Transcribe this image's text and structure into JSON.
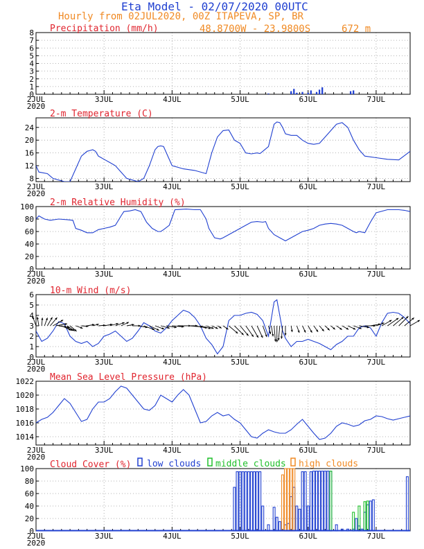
{
  "header": {
    "title": "Eta Model - 02/07/2020 00UTC",
    "subtitle": "Hourly from 02JUL2020, 00Z  ITAPEVA, SP, BR",
    "location": "48.8700W - 23.9800S",
    "elevation": "672  m"
  },
  "colors": {
    "blue": "#1f3fd0",
    "orange": "#f08a24",
    "red": "#e0242e",
    "green": "#1fbf2a"
  },
  "chart_data": [
    {
      "type": "bar",
      "title": "Precipitation (mm/h)",
      "x_range": [
        0,
        132
      ],
      "ylim": [
        0,
        8
      ],
      "yticks": [
        0,
        1,
        2,
        3,
        4,
        5,
        6,
        7,
        8
      ],
      "xtick_labels": [
        "2JUL",
        "3JUL",
        "4JUL",
        "5JUL",
        "6JUL",
        "7JUL"
      ],
      "xtick_year": "2020",
      "grid": true,
      "series": [
        {
          "name": "precipitation",
          "x": [
            82,
            90,
            91,
            92,
            94,
            96,
            97,
            99,
            100,
            101,
            111,
            112
          ],
          "values": [
            0.1,
            0.4,
            0.7,
            0.2,
            0.3,
            0.2,
            0.5,
            0.3,
            0.6,
            0.9,
            0.4,
            0.5
          ]
        }
      ]
    },
    {
      "type": "line",
      "title": "2-m Temperature (C)",
      "x_range": [
        0,
        132
      ],
      "ylim": [
        7,
        27
      ],
      "yticks": [
        8,
        12,
        16,
        20,
        24
      ],
      "xtick_labels": [
        "2JUL",
        "3JUL",
        "4JUL",
        "5JUL",
        "6JUL",
        "7JUL"
      ],
      "xtick_year": "2020",
      "grid": true,
      "series": [
        {
          "name": "temperature",
          "x": [
            0,
            1,
            4,
            6,
            10,
            12,
            14,
            16,
            18,
            20,
            21,
            22,
            23,
            24,
            26,
            28,
            30,
            32,
            34,
            36,
            38,
            40,
            42,
            43,
            44,
            45,
            46,
            48,
            52,
            56,
            60,
            62,
            64,
            66,
            68,
            70,
            72,
            74,
            76,
            78,
            79,
            80,
            82,
            84,
            85,
            86,
            87,
            88,
            90,
            92,
            94,
            96,
            98,
            100,
            102,
            104,
            106,
            108,
            110,
            112,
            114,
            116,
            120,
            124,
            128,
            132
          ],
          "values": [
            12,
            10,
            9.5,
            8,
            7,
            7,
            11,
            15,
            16.5,
            17,
            16.5,
            15,
            14.5,
            14,
            13,
            12,
            10,
            8,
            7.5,
            7,
            8,
            12,
            17,
            18,
            18.2,
            18,
            16,
            12,
            11,
            10.5,
            9.5,
            16,
            21,
            23,
            23.2,
            20,
            19,
            16,
            15.7,
            16,
            15.8,
            16.5,
            18,
            25,
            25.7,
            25.5,
            24,
            22,
            21.5,
            21.5,
            20,
            19,
            18.7,
            19,
            21,
            23,
            25,
            25.5,
            24,
            20,
            17,
            15,
            14.5,
            14,
            13.8,
            16.5
          ]
        }
      ]
    },
    {
      "type": "line",
      "title": "2-m Relative Humidity (%)",
      "x_range": [
        0,
        132
      ],
      "ylim": [
        0,
        100
      ],
      "yticks": [
        0,
        20,
        40,
        60,
        80,
        100
      ],
      "xtick_labels": [
        "2JUL",
        "3JUL",
        "4JUL",
        "5JUL",
        "6JUL",
        "7JUL"
      ],
      "xtick_year": "2020",
      "grid": true,
      "series": [
        {
          "name": "relative humidity",
          "x": [
            0,
            1,
            3,
            5,
            8,
            11,
            13,
            14,
            16,
            18,
            20,
            22,
            24,
            26,
            28,
            30,
            31,
            33,
            35,
            37,
            39,
            41,
            43,
            44,
            45,
            47,
            49,
            53,
            56,
            58,
            60,
            61,
            63,
            65,
            66,
            68,
            70,
            72,
            74,
            76,
            78,
            80,
            81,
            82,
            84,
            86,
            88,
            90,
            92,
            94,
            96,
            98,
            100,
            102,
            104,
            106,
            108,
            110,
            112,
            113,
            114,
            116,
            118,
            120,
            124,
            128,
            130,
            132
          ],
          "values": [
            80,
            85,
            80,
            78,
            80,
            79,
            78,
            65,
            62,
            58,
            58,
            63,
            65,
            67,
            70,
            85,
            92,
            93,
            95,
            92,
            75,
            65,
            60,
            60,
            63,
            70,
            95,
            96,
            95,
            95,
            80,
            65,
            50,
            48,
            50,
            55,
            60,
            65,
            70,
            75,
            76,
            75,
            76,
            65,
            55,
            50,
            45,
            50,
            55,
            60,
            62,
            65,
            70,
            72,
            73,
            72,
            70,
            65,
            60,
            58,
            60,
            58,
            75,
            90,
            95,
            95,
            94,
            92
          ]
        }
      ]
    },
    {
      "type": "line",
      "title": "10-m Wind (m/s)",
      "x_range": [
        0,
        132
      ],
      "ylim": [
        0,
        6
      ],
      "yticks": [
        0,
        1,
        2,
        3,
        4,
        5,
        6
      ],
      "xtick_labels": [
        "2JUL",
        "3JUL",
        "4JUL",
        "5JUL",
        "6JUL",
        "7JUL"
      ],
      "xtick_year": "2020",
      "grid": true,
      "series": [
        {
          "name": "wind speed",
          "x": [
            0,
            2,
            4,
            6,
            8,
            10,
            12,
            14,
            16,
            18,
            20,
            22,
            24,
            26,
            28,
            30,
            32,
            34,
            36,
            38,
            40,
            42,
            44,
            46,
            48,
            50,
            52,
            54,
            56,
            58,
            60,
            62,
            64,
            66,
            68,
            70,
            72,
            74,
            76,
            78,
            80,
            82,
            84,
            85,
            86,
            87,
            88,
            90,
            92,
            94,
            96,
            98,
            100,
            102,
            104,
            106,
            108,
            110,
            112,
            114,
            116,
            118,
            120,
            122,
            124,
            126,
            128,
            130,
            132
          ],
          "values": [
            2.5,
            1.5,
            1.8,
            2.5,
            3.4,
            3.2,
            2.0,
            1.5,
            1.3,
            1.5,
            1.0,
            1.3,
            2.0,
            2.2,
            2.5,
            2.0,
            1.5,
            1.8,
            2.5,
            3.3,
            3.0,
            2.5,
            2.3,
            2.8,
            3.5,
            4.0,
            4.5,
            4.3,
            3.8,
            3.0,
            1.8,
            1.2,
            0.3,
            1.0,
            3.5,
            4.0,
            4.0,
            4.2,
            4.3,
            4.1,
            3.5,
            2.0,
            5.3,
            5.5,
            4.0,
            2.5,
            1.8,
            1.0,
            1.5,
            1.5,
            1.7,
            1.5,
            1.3,
            1.0,
            0.7,
            1.2,
            1.5,
            2.0,
            2.0,
            2.8,
            3.0,
            2.8,
            2.0,
            3.3,
            4.2,
            4.3,
            4.2,
            3.8,
            3.2
          ]
        }
      ],
      "vectors": {
        "note": "wind barbs drawn along y=3; angles in screen degrees (0=east, 90=down)",
        "x": [
          0,
          1,
          2,
          3,
          4,
          5,
          6,
          7,
          8,
          9,
          10,
          11,
          12,
          14,
          16,
          18,
          20,
          22,
          24,
          26,
          28,
          30,
          32,
          34,
          36,
          38,
          40,
          42,
          44,
          46,
          48,
          50,
          52,
          54,
          56,
          58,
          60,
          62,
          64,
          66,
          68,
          70,
          72,
          74,
          76,
          78,
          80,
          82,
          83,
          84,
          85,
          86,
          87,
          88,
          90,
          92,
          94,
          96,
          98,
          100,
          102,
          104,
          106,
          108,
          110,
          112,
          114,
          116,
          118,
          120,
          122,
          124,
          126,
          128,
          130,
          132
        ],
        "speed": [
          2.5,
          2.2,
          1.8,
          2.0,
          2.6,
          3.0,
          3.4,
          3.3,
          3.0,
          2.8,
          2.5,
          2.2,
          2.0,
          1.5,
          1.3,
          1.5,
          1.0,
          1.3,
          2.0,
          2.2,
          2.5,
          2.0,
          1.5,
          1.8,
          2.5,
          3.3,
          3.0,
          2.5,
          2.3,
          2.8,
          3.5,
          4.0,
          4.5,
          4.3,
          3.8,
          3.0,
          1.8,
          1.2,
          0.3,
          1.0,
          3.5,
          4.0,
          4.0,
          4.2,
          4.3,
          4.1,
          3.5,
          2.0,
          3.0,
          5.3,
          5.5,
          4.8,
          4.0,
          2.5,
          1.0,
          1.5,
          1.5,
          1.7,
          1.5,
          1.3,
          1.0,
          0.7,
          1.2,
          1.5,
          2.0,
          2.0,
          2.8,
          3.0,
          2.8,
          2.0,
          3.3,
          4.2,
          4.3,
          4.2,
          3.8,
          3.2
        ],
        "angle": [
          -110,
          -100,
          -85,
          -70,
          -60,
          -50,
          -30,
          -10,
          10,
          25,
          30,
          35,
          40,
          20,
          5,
          -10,
          -15,
          -5,
          -10,
          -15,
          -20,
          -25,
          -10,
          0,
          10,
          20,
          25,
          20,
          15,
          10,
          5,
          0,
          0,
          5,
          10,
          15,
          20,
          25,
          30,
          35,
          40,
          45,
          50,
          55,
          60,
          65,
          70,
          75,
          80,
          85,
          90,
          95,
          95,
          90,
          80,
          70,
          65,
          60,
          55,
          50,
          45,
          40,
          35,
          30,
          25,
          20,
          10,
          0,
          -10,
          -20,
          -30,
          -35,
          -40,
          -45,
          -40,
          -30
        ]
      }
    },
    {
      "type": "line",
      "title": "Mean Sea Level Pressure (hPa)",
      "x_range": [
        0,
        132
      ],
      "ylim": [
        1012.8,
        1022
      ],
      "yticks": [
        1014,
        1016,
        1018,
        1020,
        1022
      ],
      "xtick_labels": [
        "2JUL",
        "3JUL",
        "4JUL",
        "5JUL",
        "6JUL",
        "7JUL"
      ],
      "xtick_year": "2020",
      "grid": true,
      "series": [
        {
          "name": "pressure",
          "x": [
            0,
            2,
            4,
            6,
            8,
            10,
            12,
            14,
            16,
            18,
            20,
            22,
            24,
            26,
            28,
            30,
            32,
            34,
            36,
            38,
            40,
            42,
            44,
            46,
            48,
            50,
            52,
            54,
            56,
            58,
            60,
            62,
            64,
            66,
            68,
            70,
            72,
            74,
            76,
            78,
            80,
            82,
            84,
            86,
            88,
            90,
            92,
            94,
            96,
            98,
            100,
            102,
            104,
            106,
            108,
            110,
            112,
            114,
            116,
            118,
            120,
            122,
            124,
            126,
            128,
            130,
            132
          ],
          "values": [
            1016.0,
            1016.5,
            1016.8,
            1017.5,
            1018.5,
            1019.5,
            1018.8,
            1017.5,
            1016.2,
            1016.5,
            1018.0,
            1019.0,
            1019.0,
            1019.5,
            1020.5,
            1021.3,
            1021.0,
            1020.0,
            1019.0,
            1018.0,
            1017.8,
            1018.5,
            1020.0,
            1019.5,
            1019.0,
            1020.0,
            1020.8,
            1020.0,
            1018.0,
            1016.0,
            1016.2,
            1017.0,
            1017.5,
            1017.0,
            1017.2,
            1016.5,
            1016.0,
            1015.0,
            1014.0,
            1013.8,
            1014.5,
            1015.0,
            1014.7,
            1014.5,
            1014.5,
            1015.0,
            1015.8,
            1016.5,
            1015.5,
            1014.5,
            1013.6,
            1013.8,
            1014.5,
            1015.5,
            1016.0,
            1015.8,
            1015.5,
            1015.7,
            1016.3,
            1016.5,
            1017.0,
            1016.9,
            1016.6,
            1016.4,
            1016.6,
            1016.8,
            1017.0
          ]
        }
      ]
    },
    {
      "type": "bar",
      "title": "Cloud Cover (%)",
      "x_range": [
        0,
        132
      ],
      "ylim": [
        0,
        100
      ],
      "yticks": [
        0,
        20,
        40,
        60,
        80,
        100
      ],
      "xtick_labels": [
        "2JUL",
        "3JUL",
        "4JUL",
        "5JUL",
        "6JUL",
        "7JUL"
      ],
      "xtick_year": "2020",
      "grid": true,
      "legend": [
        "low clouds",
        "middle clouds",
        "high clouds"
      ],
      "series": [
        {
          "name": "low clouds",
          "x": [
            70,
            71,
            72,
            73,
            74,
            75,
            76,
            77,
            78,
            79,
            80,
            82,
            84,
            85,
            86,
            88,
            89,
            90,
            91,
            92,
            93,
            94,
            95,
            96,
            97,
            98,
            99,
            100,
            101,
            102,
            103,
            104,
            106,
            108,
            110,
            112,
            113,
            114,
            115,
            116,
            117,
            118,
            119,
            131
          ],
          "values": [
            70,
            95,
            95,
            95,
            95,
            95,
            95,
            95,
            95,
            95,
            40,
            10,
            38,
            22,
            15,
            10,
            12,
            55,
            70,
            40,
            35,
            95,
            95,
            40,
            95,
            96,
            96,
            96,
            96,
            96,
            96,
            96,
            10,
            3,
            3,
            3,
            20,
            8,
            3,
            30,
            42,
            48,
            50,
            87
          ]
        },
        {
          "name": "middle clouds",
          "x": [
            104,
            112,
            114,
            116,
            117
          ],
          "values": [
            96,
            30,
            40,
            47,
            48
          ]
        },
        {
          "name": "high clouds",
          "x": [
            87,
            88,
            89,
            90,
            91
          ],
          "values": [
            90,
            100,
            100,
            100,
            100
          ]
        }
      ]
    }
  ]
}
